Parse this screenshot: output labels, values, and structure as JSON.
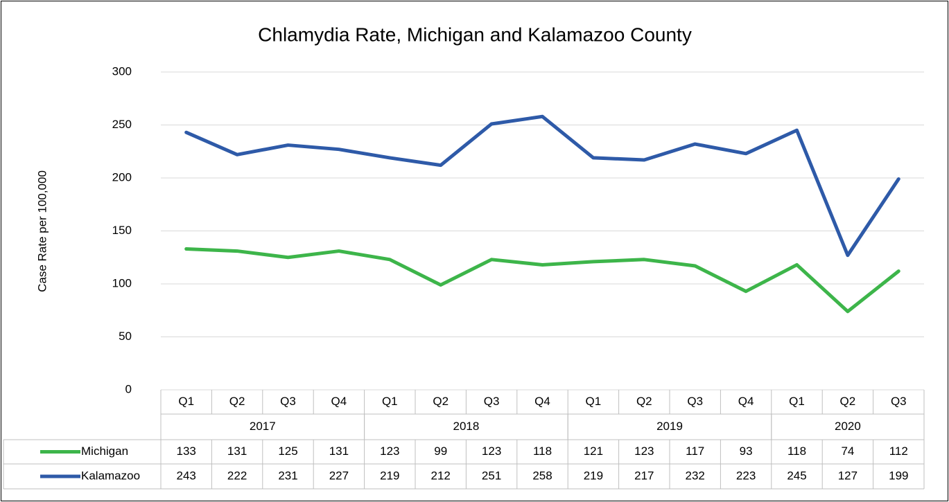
{
  "chart_data": {
    "type": "line",
    "title": "Chlamydia Rate, Michigan and Kalamazoo County",
    "y_label": "Case Rate per 100,000",
    "x": [
      {
        "year": "2017",
        "quarter": "Q1"
      },
      {
        "year": "2017",
        "quarter": "Q2"
      },
      {
        "year": "2017",
        "quarter": "Q3"
      },
      {
        "year": "2017",
        "quarter": "Q4"
      },
      {
        "year": "2018",
        "quarter": "Q1"
      },
      {
        "year": "2018",
        "quarter": "Q2"
      },
      {
        "year": "2018",
        "quarter": "Q3"
      },
      {
        "year": "2018",
        "quarter": "Q4"
      },
      {
        "year": "2019",
        "quarter": "Q1"
      },
      {
        "year": "2019",
        "quarter": "Q2"
      },
      {
        "year": "2019",
        "quarter": "Q3"
      },
      {
        "year": "2019",
        "quarter": "Q4"
      },
      {
        "year": "2020",
        "quarter": "Q1"
      },
      {
        "year": "2020",
        "quarter": "Q2"
      },
      {
        "year": "2020",
        "quarter": "Q3"
      }
    ],
    "series": [
      {
        "name": "Michigan",
        "color": "#3db54a",
        "values": [
          133,
          131,
          125,
          131,
          123,
          99,
          123,
          118,
          121,
          123,
          117,
          93,
          118,
          74,
          112
        ]
      },
      {
        "name": "Kalamazoo",
        "color": "#2e5aa8",
        "values": [
          243,
          222,
          231,
          227,
          219,
          212,
          251,
          258,
          219,
          217,
          232,
          223,
          245,
          127,
          199
        ]
      }
    ],
    "ylim": [
      0,
      300
    ],
    "yticks": [
      0,
      50,
      100,
      150,
      200,
      250,
      300
    ],
    "grid": true,
    "data_table": true
  }
}
